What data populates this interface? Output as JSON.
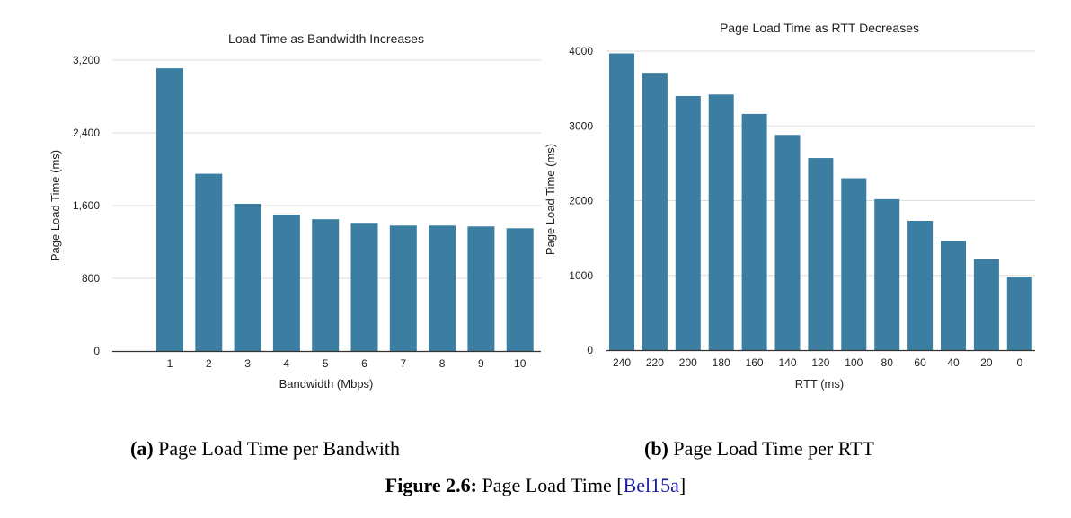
{
  "chart_data": [
    {
      "type": "bar",
      "title": "Load Time as Bandwidth Increases",
      "xlabel": "Bandwidth (Mbps)",
      "ylabel": "Page Load Time (ms)",
      "categories": [
        "1",
        "2",
        "3",
        "4",
        "5",
        "6",
        "7",
        "8",
        "9",
        "10"
      ],
      "values": [
        3110,
        1950,
        1620,
        1500,
        1450,
        1410,
        1380,
        1380,
        1370,
        1350
      ],
      "ylim": [
        0,
        3200
      ],
      "yticks": [
        0,
        800,
        1600,
        2400,
        3200
      ],
      "ytick_labels": [
        "0",
        "800",
        "1,600",
        "2,400",
        "3,200"
      ],
      "grid": true,
      "bar_color": "#3b7ea1"
    },
    {
      "type": "bar",
      "title": "Page Load Time as RTT Decreases",
      "xlabel": "RTT (ms)",
      "ylabel": "Page Load Time (ms)",
      "categories": [
        "240",
        "220",
        "200",
        "180",
        "160",
        "140",
        "120",
        "100",
        "80",
        "60",
        "40",
        "20",
        "0"
      ],
      "values": [
        3970,
        3710,
        3400,
        3420,
        3160,
        2880,
        2570,
        2300,
        2020,
        1730,
        1460,
        1220,
        980
      ],
      "ylim": [
        0,
        4000
      ],
      "yticks": [
        0,
        1000,
        2000,
        3000,
        4000
      ],
      "ytick_labels": [
        "0",
        "1000",
        "2000",
        "3000",
        "4000"
      ],
      "grid": true,
      "bar_color": "#3b7ea1"
    }
  ],
  "captions": {
    "a_label": "(a)",
    "a_text": "Page Load Time per Bandwith",
    "b_label": "(b)",
    "b_text": "Page Load Time per RTT",
    "figure_label": "Figure 2.6:",
    "figure_text": "Page Load Time",
    "citation_open": "[",
    "citation": "Bel15a",
    "citation_close": "]"
  }
}
